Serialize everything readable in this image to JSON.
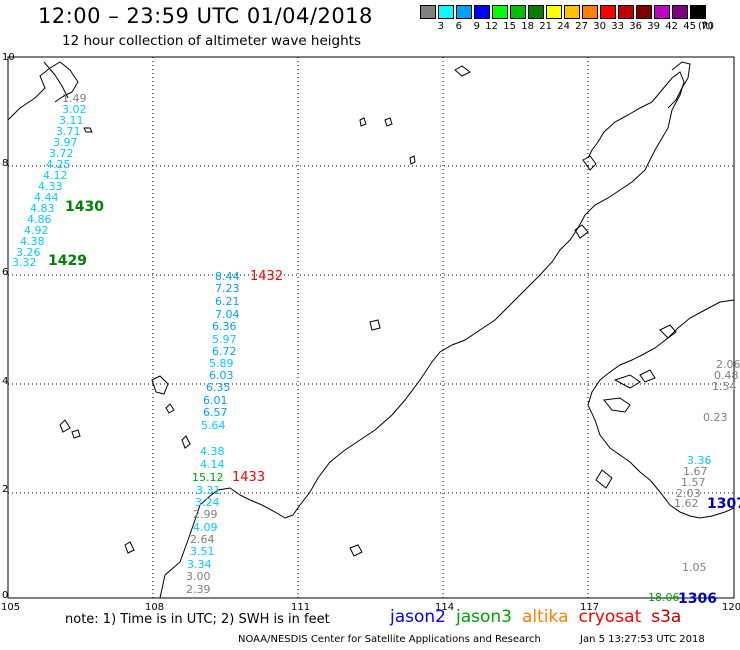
{
  "header": {
    "title": "12:00 – 23:59 UTC 01/04/2018",
    "subtitle": "12 hour collection of altimeter wave heights"
  },
  "legend": {
    "unit": "(ft)",
    "swatches": [
      {
        "color": "#808080",
        "label": "3"
      },
      {
        "color": "#00ffff",
        "label": "6"
      },
      {
        "color": "#00a0ff",
        "label": "9"
      },
      {
        "color": "#0000ff",
        "label": "12"
      },
      {
        "color": "#00ff00",
        "label": "15"
      },
      {
        "color": "#00c000",
        "label": "18"
      },
      {
        "color": "#008000",
        "label": "21"
      },
      {
        "color": "#ffff00",
        "label": "24"
      },
      {
        "color": "#ffc000",
        "label": "27"
      },
      {
        "color": "#ff8000",
        "label": "30"
      },
      {
        "color": "#ff0000",
        "label": "33"
      },
      {
        "color": "#c00000",
        "label": "36"
      },
      {
        "color": "#800000",
        "label": "39"
      },
      {
        "color": "#c000c0",
        "label": "42"
      },
      {
        "color": "#800080",
        "label": "45"
      },
      {
        "color": "#000000",
        "label": "70"
      }
    ]
  },
  "axes": {
    "x_ticks": [
      "105",
      "108",
      "111",
      "114",
      "117",
      "120"
    ],
    "y_ticks": [
      "0",
      "2",
      "4",
      "6",
      "8",
      "10"
    ]
  },
  "tracks": {
    "track_1430": {
      "time_label": "1430",
      "values": [
        {
          "v": "1.49",
          "c": "#808080"
        },
        {
          "v": "3.02",
          "c": "#00ccff"
        },
        {
          "v": "3.11",
          "c": "#00ccff"
        },
        {
          "v": "3.71",
          "c": "#00ccff"
        },
        {
          "v": "3.97",
          "c": "#00ccff"
        },
        {
          "v": "3.72",
          "c": "#00ccff"
        },
        {
          "v": "4.25",
          "c": "#00ccff"
        },
        {
          "v": "4.12",
          "c": "#00ccff"
        },
        {
          "v": "4.33",
          "c": "#00ccff"
        },
        {
          "v": "4.44",
          "c": "#00ccff"
        },
        {
          "v": "4.83",
          "c": "#00ccff"
        },
        {
          "v": "4.86",
          "c": "#00ccff"
        },
        {
          "v": "4.92",
          "c": "#00ccff"
        },
        {
          "v": "4.38",
          "c": "#00ccff"
        },
        {
          "v": "3.26",
          "c": "#00ccff"
        },
        {
          "v": "3.32",
          "c": "#00ccff"
        }
      ]
    },
    "track_1429": {
      "time_label": "1429"
    },
    "track_1432": {
      "time_label": "1432",
      "values": [
        {
          "v": "8.44",
          "c": "#00a0ff"
        },
        {
          "v": "7.23",
          "c": "#00a0ff"
        },
        {
          "v": "6.21",
          "c": "#00a0ff"
        },
        {
          "v": "7.04",
          "c": "#00a0ff"
        },
        {
          "v": "6.36",
          "c": "#00a0ff"
        },
        {
          "v": "5.97",
          "c": "#00ccff"
        },
        {
          "v": "6.72",
          "c": "#00a0ff"
        },
        {
          "v": "5.89",
          "c": "#00ccff"
        },
        {
          "v": "6.03",
          "c": "#00a0ff"
        },
        {
          "v": "6.35",
          "c": "#00a0ff"
        },
        {
          "v": "6.01",
          "c": "#00a0ff"
        },
        {
          "v": "6.57",
          "c": "#00a0ff"
        },
        {
          "v": "5.64",
          "c": "#00ccff"
        }
      ]
    },
    "track_1433": {
      "time_label": "1433",
      "values": [
        {
          "v": "4.38",
          "c": "#00ccff"
        },
        {
          "v": "4.14",
          "c": "#00ccff"
        },
        {
          "v": "15.12",
          "c": "#00a000"
        },
        {
          "v": "3.31",
          "c": "#00ccff"
        },
        {
          "v": "3.24",
          "c": "#00ccff"
        },
        {
          "v": "2.99",
          "c": "#808080"
        },
        {
          "v": "4.09",
          "c": "#00ccff"
        },
        {
          "v": "2.64",
          "c": "#808080"
        },
        {
          "v": "3.51",
          "c": "#00ccff"
        },
        {
          "v": "3.34",
          "c": "#00ccff"
        },
        {
          "v": "3.00",
          "c": "#808080"
        },
        {
          "v": "2.39",
          "c": "#808080"
        }
      ]
    },
    "track_1307": {
      "time_label": "1307",
      "values": [
        {
          "v": "2.06",
          "c": "#808080"
        },
        {
          "v": "0.48",
          "c": "#808080"
        },
        {
          "v": "1.54",
          "c": "#808080"
        },
        {
          "v": "0.23",
          "c": "#808080"
        },
        {
          "v": "3.36",
          "c": "#00ccff"
        },
        {
          "v": "1.67",
          "c": "#808080"
        },
        {
          "v": "1.57",
          "c": "#808080"
        },
        {
          "v": "2.03",
          "c": "#808080"
        },
        {
          "v": "1.62",
          "c": "#808080"
        }
      ]
    },
    "track_1306": {
      "time_label": "1306",
      "values": [
        {
          "v": "1.05",
          "c": "#808080"
        },
        {
          "v": "18.06",
          "c": "#00a000"
        }
      ]
    }
  },
  "footer": {
    "note": "note: 1) Time is in UTC; 2) SWH is in feet",
    "satellites": [
      {
        "name": "jason2",
        "color": "#0000ff"
      },
      {
        "name": "jason3",
        "color": "#00a000"
      },
      {
        "name": "altika",
        "color": "#ff8000"
      },
      {
        "name": "cryosat",
        "color": "#ff0000"
      },
      {
        "name": "s3a",
        "color": "#c00000"
      }
    ],
    "credit": "NOAA/NESDIS Center for Satellite Applications and Research",
    "date": "Jan  5 13:27:53 UTC 2018"
  }
}
